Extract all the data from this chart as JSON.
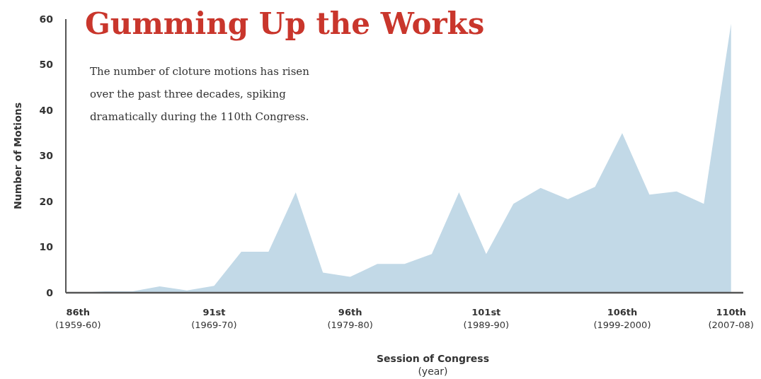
{
  "chart_data": {
    "type": "area",
    "title": "Gumming Up the Works",
    "subtitle": "The number of cloture motions has risen\nover the past three decades, spiking\ndramatically during the 110th Congress.",
    "xlabel": "Session of Congress\n(year)",
    "ylabel": "Number of Motions",
    "categories": [
      "86th\n(1959-60)",
      null,
      null,
      null,
      null,
      "91st\n(1969-70)",
      null,
      null,
      null,
      null,
      "96th\n(1979-80)",
      null,
      null,
      null,
      null,
      "101st\n(1989-90)",
      null,
      null,
      null,
      null,
      "106th\n(1999-2000)",
      null,
      null,
      null,
      "110th\n(2007-08)"
    ],
    "series": [
      {
        "color": "#c2d9e7",
        "values": [
          0,
          0.3,
          0.3,
          1.4,
          0.5,
          1.5,
          9,
          9,
          22,
          4.4,
          3.5,
          6.3,
          6.3,
          8.5,
          22,
          8.5,
          19.5,
          23,
          20.5,
          23.2,
          35,
          21.5,
          22.2,
          19.5,
          59
        ]
      }
    ],
    "ylim": [
      0,
      60
    ],
    "yticks": [
      0,
      10,
      20,
      30,
      40,
      50,
      60
    ],
    "grid": false
  }
}
